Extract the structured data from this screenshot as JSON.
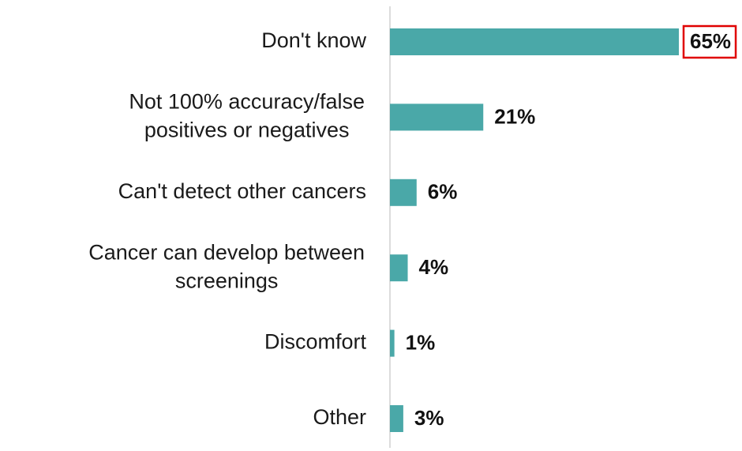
{
  "chart_data": {
    "type": "hbar",
    "categories": [
      "Don't know",
      [
        "Not 100% accuracy/false",
        "positives or negatives"
      ],
      "Can't detect other cancers",
      [
        "Cancer can develop between",
        "screenings"
      ],
      "Discomfort",
      "Other"
    ],
    "values": [
      65,
      21,
      6,
      4,
      1,
      3
    ],
    "value_labels": [
      "65%",
      "21%",
      "6%",
      "4%",
      "1%",
      "3%"
    ],
    "color": "#4aa8a8",
    "highlight": {
      "index": 0,
      "color": "#e00000"
    }
  }
}
